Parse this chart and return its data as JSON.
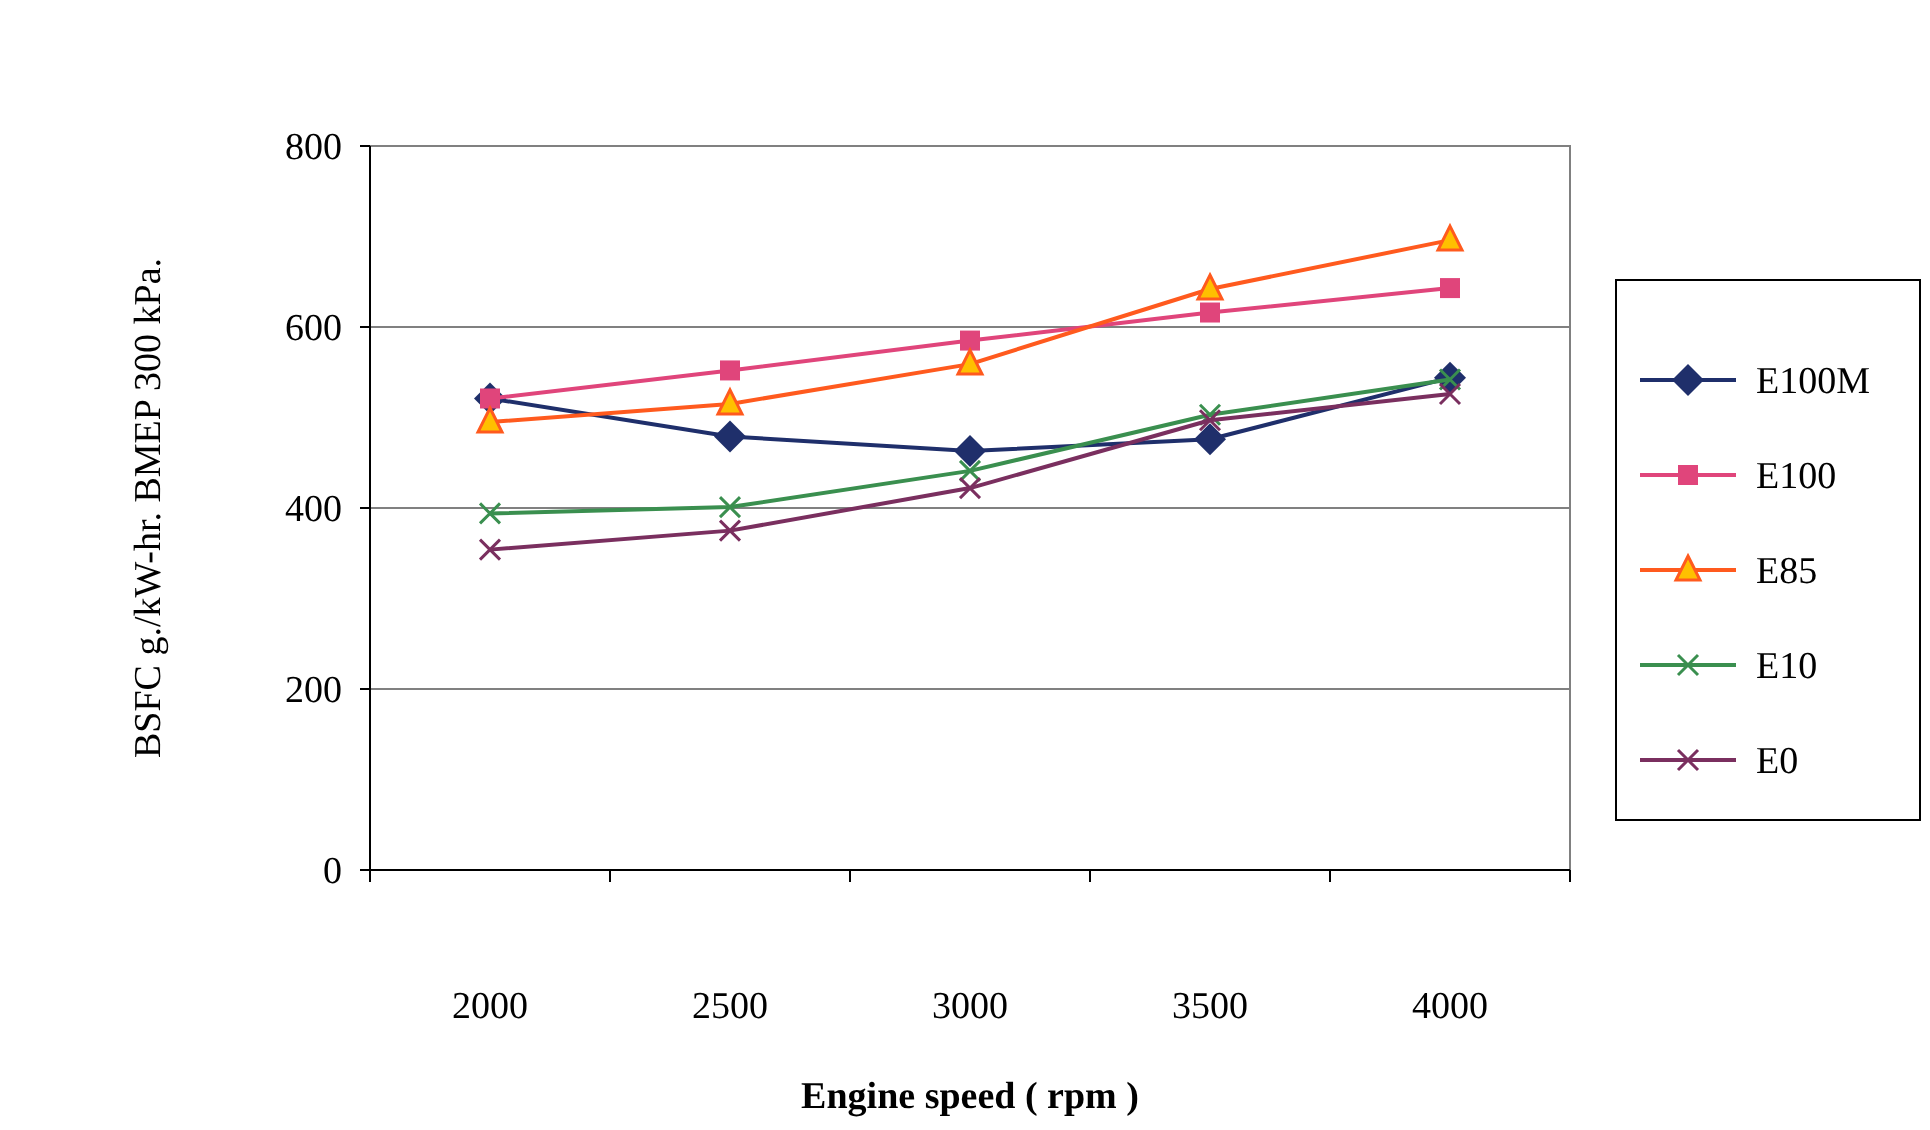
{
  "chart_data": {
    "type": "line",
    "xlabel": "Engine speed ( rpm )",
    "ylabel": "BSFC g./kW-hr. BMEP 300 kPa.",
    "categories": [
      "2000",
      "2500",
      "3000",
      "3500",
      "4000"
    ],
    "ylim": [
      0,
      800
    ],
    "yticks": [
      0,
      200,
      400,
      600,
      800
    ],
    "grid": "y",
    "legend": "right",
    "series": [
      {
        "name": "E100M",
        "color": "#1f2f6b",
        "marker": "diamond",
        "values": [
          521,
          479,
          463,
          476,
          544
        ]
      },
      {
        "name": "E100",
        "color": "#e0457b",
        "marker": "square",
        "values": [
          521,
          552,
          585,
          616,
          643
        ]
      },
      {
        "name": "E85",
        "color": "#ff5a1e",
        "marker": "triangle",
        "values": [
          495,
          515,
          559,
          642,
          696
        ]
      },
      {
        "name": "E10",
        "color": "#3a8f4f",
        "marker": "cross",
        "values": [
          394,
          401,
          441,
          503,
          542
        ]
      },
      {
        "name": "E0",
        "color": "#7a2f5f",
        "marker": "cross",
        "values": [
          354,
          375,
          422,
          497,
          526
        ]
      }
    ]
  }
}
